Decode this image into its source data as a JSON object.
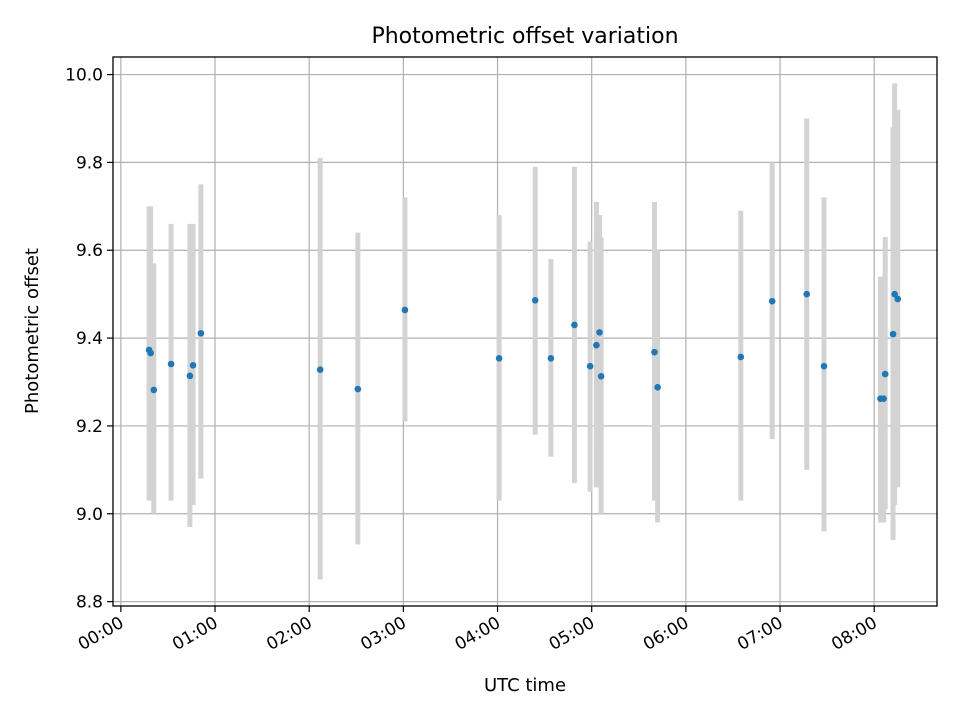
{
  "chart_data": {
    "type": "scatter",
    "title": "Photometric offset variation",
    "xlabel": "UTC time",
    "ylabel": "Photometric offset",
    "xlim": [
      "-00:05",
      "08:40"
    ],
    "ylim": [
      8.79,
      10.04
    ],
    "x_ticks": [
      "00:00",
      "01:00",
      "02:00",
      "03:00",
      "04:00",
      "05:00",
      "06:00",
      "07:00",
      "08:00"
    ],
    "y_ticks": [
      8.8,
      9.0,
      9.2,
      9.4,
      9.6,
      9.8,
      10.0
    ],
    "y_tick_labels": [
      "8.8",
      "9.0",
      "9.2",
      "9.4",
      "9.6",
      "9.8",
      "10.0"
    ],
    "grid": true,
    "errorbar_color": "#d3d3d3",
    "marker_color": "#1f77b4",
    "points": [
      {
        "t": "00:18",
        "y": 9.373,
        "lo": 9.03,
        "hi": 9.7
      },
      {
        "t": "00:19",
        "y": 9.366,
        "lo": 9.03,
        "hi": 9.7
      },
      {
        "t": "00:21",
        "y": 9.282,
        "lo": 9.0,
        "hi": 9.57
      },
      {
        "t": "00:32",
        "y": 9.341,
        "lo": 9.03,
        "hi": 9.66
      },
      {
        "t": "00:44",
        "y": 9.314,
        "lo": 8.97,
        "hi": 9.66
      },
      {
        "t": "00:46",
        "y": 9.338,
        "lo": 9.02,
        "hi": 9.66
      },
      {
        "t": "00:51",
        "y": 9.411,
        "lo": 9.08,
        "hi": 9.75
      },
      {
        "t": "02:07",
        "y": 9.328,
        "lo": 8.85,
        "hi": 9.81
      },
      {
        "t": "02:31",
        "y": 9.284,
        "lo": 8.93,
        "hi": 9.64
      },
      {
        "t": "03:01",
        "y": 9.464,
        "lo": 9.21,
        "hi": 9.72
      },
      {
        "t": "04:01",
        "y": 9.354,
        "lo": 9.03,
        "hi": 9.68
      },
      {
        "t": "04:24",
        "y": 9.486,
        "lo": 9.18,
        "hi": 9.79
      },
      {
        "t": "04:34",
        "y": 9.354,
        "lo": 9.13,
        "hi": 9.58
      },
      {
        "t": "04:49",
        "y": 9.43,
        "lo": 9.07,
        "hi": 9.79
      },
      {
        "t": "04:59",
        "y": 9.336,
        "lo": 9.05,
        "hi": 9.62
      },
      {
        "t": "05:03",
        "y": 9.384,
        "lo": 9.06,
        "hi": 9.71
      },
      {
        "t": "05:05",
        "y": 9.413,
        "lo": 9.15,
        "hi": 9.68
      },
      {
        "t": "05:06",
        "y": 9.313,
        "lo": 9.0,
        "hi": 9.63
      },
      {
        "t": "05:40",
        "y": 9.368,
        "lo": 9.03,
        "hi": 9.71
      },
      {
        "t": "05:42",
        "y": 9.288,
        "lo": 8.98,
        "hi": 9.6
      },
      {
        "t": "06:35",
        "y": 9.357,
        "lo": 9.03,
        "hi": 9.69
      },
      {
        "t": "06:55",
        "y": 9.484,
        "lo": 9.17,
        "hi": 9.8
      },
      {
        "t": "07:17",
        "y": 9.5,
        "lo": 9.1,
        "hi": 9.9
      },
      {
        "t": "07:28",
        "y": 9.336,
        "lo": 8.96,
        "hi": 9.72
      },
      {
        "t": "08:04",
        "y": 9.262,
        "lo": 8.98,
        "hi": 9.54
      },
      {
        "t": "08:06",
        "y": 9.262,
        "lo": 8.98,
        "hi": 9.54
      },
      {
        "t": "08:07",
        "y": 9.318,
        "lo": 9.01,
        "hi": 9.63
      },
      {
        "t": "08:12",
        "y": 9.409,
        "lo": 8.94,
        "hi": 9.88
      },
      {
        "t": "08:13",
        "y": 9.5,
        "lo": 9.02,
        "hi": 9.98
      },
      {
        "t": "08:15",
        "y": 9.489,
        "lo": 9.06,
        "hi": 9.92
      }
    ]
  }
}
